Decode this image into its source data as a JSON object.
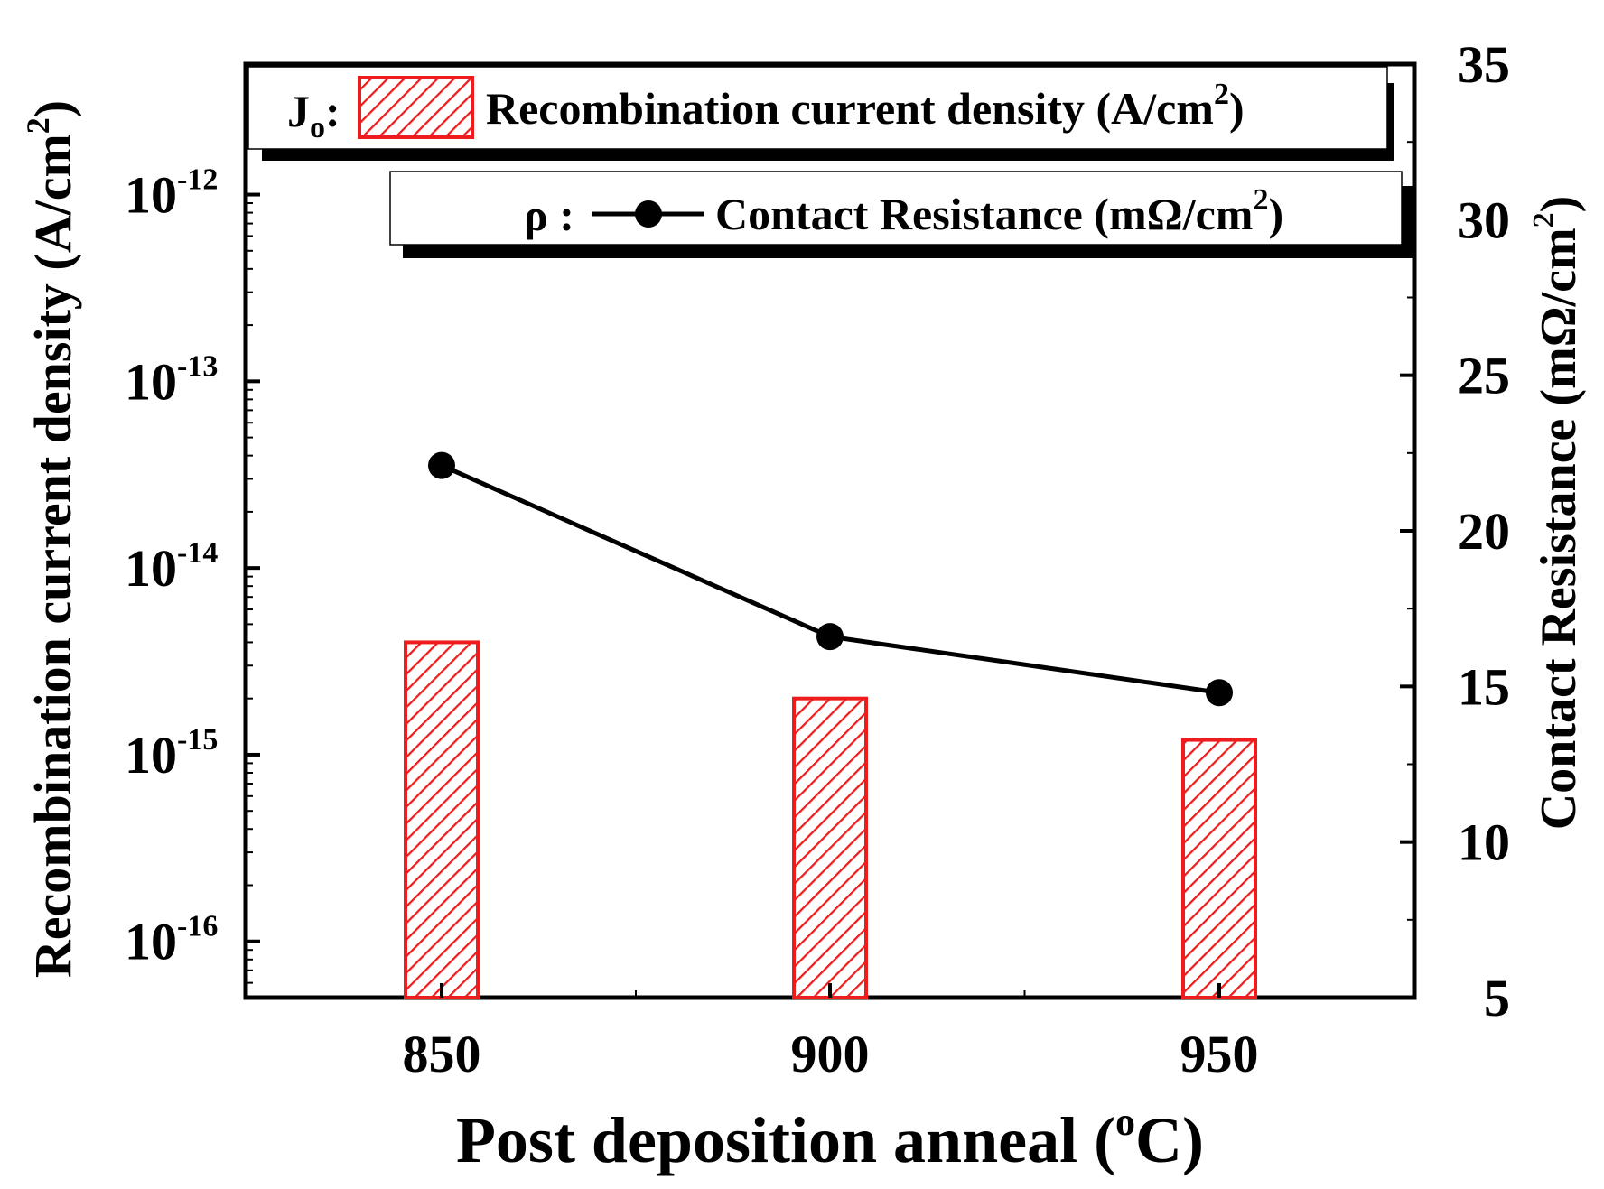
{
  "chart_data": {
    "type": "bar+line",
    "xlabel": {
      "main": "Post deposition anneal (",
      "sup": "o",
      "end": "C)"
    },
    "categories": [
      "850",
      "900",
      "950"
    ],
    "x_ticks": [
      "850",
      "900",
      "950"
    ],
    "left_axis": {
      "label": {
        "main": "Recombination current density (A/cm",
        "sup": "2",
        "end": ")"
      },
      "scale": "log",
      "ylim": [
        5e-17,
        5e-12
      ],
      "ticks": [
        {
          "value": 1e-16,
          "base": "10",
          "exp": "-16"
        },
        {
          "value": 1e-15,
          "base": "10",
          "exp": "-15"
        },
        {
          "value": 1e-14,
          "base": "10",
          "exp": "-14"
        },
        {
          "value": 1e-13,
          "base": "10",
          "exp": "-13"
        },
        {
          "value": 1e-12,
          "base": "10",
          "exp": "-12"
        }
      ]
    },
    "right_axis": {
      "label": {
        "main": "Contact Resistance (mΩ/cm",
        "sup": "2",
        "end": ")"
      },
      "scale": "linear",
      "ylim": [
        5,
        35
      ],
      "ticks": [
        "5",
        "10",
        "15",
        "20",
        "25",
        "30",
        "35"
      ]
    },
    "series": [
      {
        "name": "Jo",
        "type": "bar",
        "axis": "left",
        "color": "#ee1c1c",
        "values": [
          4e-15,
          2e-15,
          1.2e-15
        ],
        "legend": {
          "symbol_main": "J",
          "symbol_sub": "o",
          "symbol_end": ":",
          "text_main": "Recombination current density (A/cm",
          "text_sup": "2",
          "text_end": ")"
        }
      },
      {
        "name": "rho",
        "type": "line",
        "axis": "right",
        "color": "#000000",
        "values": [
          22.1,
          16.6,
          14.8
        ],
        "legend": {
          "symbol": "ρ :",
          "text_main": "Contact Resistance (mΩ/cm",
          "text_sup": "2",
          "text_end": ")"
        }
      }
    ]
  }
}
